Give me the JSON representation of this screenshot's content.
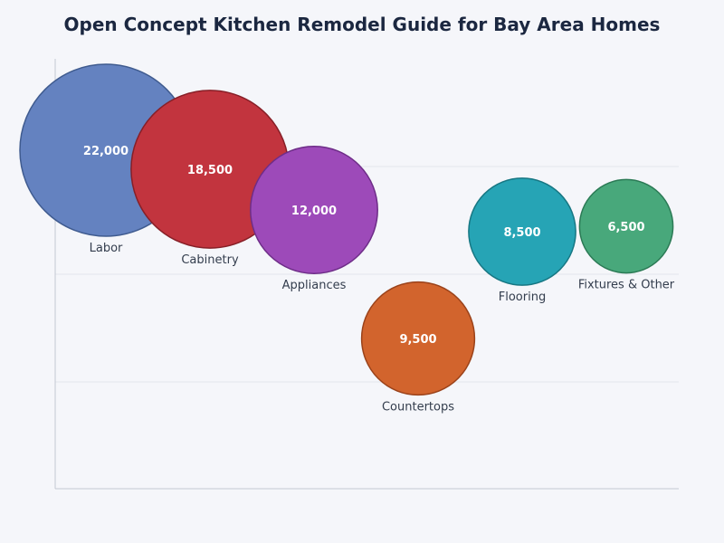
{
  "chart_data": {
    "type": "scatter",
    "title": "Open Concept Kitchen Remodel Guide for Bay Area Homes",
    "xlabel": "",
    "ylabel": "",
    "grid": true,
    "points": [
      {
        "label": "Labor",
        "value": 22000,
        "value_label": "22,000",
        "color": "#6482c0",
        "stroke": "#3f5b8f"
      },
      {
        "label": "Cabinetry",
        "value": 18500,
        "value_label": "18,500",
        "color": "#c2343e",
        "stroke": "#871f27"
      },
      {
        "label": "Appliances",
        "value": 12000,
        "value_label": "12,000",
        "color": "#9d4ab9",
        "stroke": "#6e2d88"
      },
      {
        "label": "Countertops",
        "value": 9500,
        "value_label": "9,500",
        "color": "#d2642d",
        "stroke": "#9a421a"
      },
      {
        "label": "Flooring",
        "value": 8500,
        "value_label": "8,500",
        "color": "#26a4b5",
        "stroke": "#177783"
      },
      {
        "label": "Fixtures & Other",
        "value": 6500,
        "value_label": "6,500",
        "color": "#48a87b",
        "stroke": "#2b7a55"
      }
    ]
  }
}
